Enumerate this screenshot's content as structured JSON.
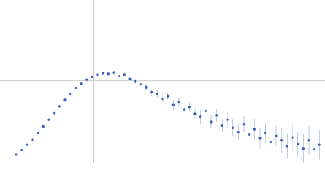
{
  "chart_data": {
    "type": "scatter",
    "xlim": [
      0,
      6
    ],
    "ylim": [
      0,
      2.2
    ],
    "reference_lines": {
      "x": 1.732,
      "y": 1.104
    },
    "series": [
      {
        "color": "#3a62b5",
        "error_color": "#a9bde0",
        "x": [
          0.3,
          0.4,
          0.5,
          0.6,
          0.7,
          0.8,
          0.9,
          1.0,
          1.1,
          1.2,
          1.3,
          1.4,
          1.5,
          1.6,
          1.7,
          1.8,
          1.9,
          2.0,
          2.1,
          2.2,
          2.3,
          2.4,
          2.5,
          2.6,
          2.7,
          2.8,
          2.9,
          3.0,
          3.1,
          3.2,
          3.3,
          3.4,
          3.5,
          3.6,
          3.7,
          3.8,
          3.9,
          4.0,
          4.1,
          4.2,
          4.3,
          4.4,
          4.5,
          4.6,
          4.7,
          4.8,
          4.9,
          5.0,
          5.1,
          5.2,
          5.3,
          5.4,
          5.5,
          5.6,
          5.7,
          5.8,
          5.9
        ],
        "values": [
          0.11,
          0.17,
          0.24,
          0.31,
          0.4,
          0.49,
          0.58,
          0.67,
          0.76,
          0.85,
          0.93,
          1.01,
          1.07,
          1.12,
          1.16,
          1.19,
          1.21,
          1.2,
          1.22,
          1.17,
          1.19,
          1.13,
          1.1,
          1.06,
          1.02,
          0.95,
          0.93,
          0.86,
          0.9,
          0.78,
          0.82,
          0.72,
          0.75,
          0.66,
          0.62,
          0.7,
          0.55,
          0.64,
          0.5,
          0.58,
          0.47,
          0.41,
          0.52,
          0.38,
          0.45,
          0.33,
          0.4,
          0.28,
          0.36,
          0.3,
          0.22,
          0.34,
          0.25,
          0.19,
          0.3,
          0.18,
          0.24
        ],
        "errors": [
          0.01,
          0.01,
          0.01,
          0.01,
          0.01,
          0.01,
          0.01,
          0.01,
          0.01,
          0.01,
          0.02,
          0.02,
          0.02,
          0.02,
          0.02,
          0.02,
          0.02,
          0.02,
          0.03,
          0.03,
          0.03,
          0.03,
          0.03,
          0.03,
          0.05,
          0.05,
          0.05,
          0.05,
          0.05,
          0.07,
          0.07,
          0.07,
          0.07,
          0.07,
          0.09,
          0.09,
          0.09,
          0.09,
          0.09,
          0.11,
          0.11,
          0.11,
          0.11,
          0.11,
          0.14,
          0.14,
          0.14,
          0.14,
          0.14,
          0.17,
          0.17,
          0.17,
          0.17,
          0.2,
          0.2,
          0.2,
          0.2
        ]
      }
    ]
  }
}
